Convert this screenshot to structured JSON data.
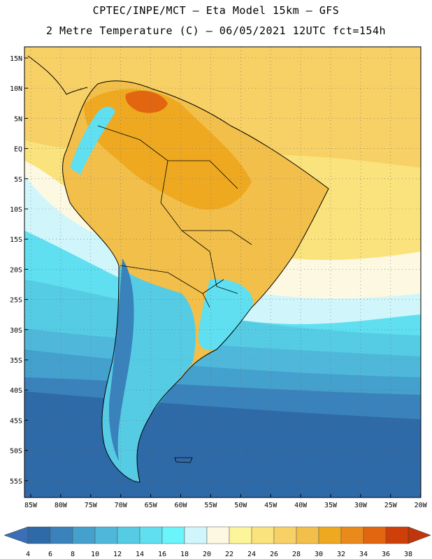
{
  "title_line1": "CPTEC/INPE/MCT –  Eta Model 15km – GFS",
  "title_line2": "2 Metre Temperature (C) – 06/05/2021 12UTC fct=154h",
  "lat_labels": [
    "15N",
    "10N",
    "5N",
    "EQ",
    "5S",
    "10S",
    "15S",
    "20S",
    "25S",
    "30S",
    "35S",
    "40S",
    "45S",
    "50S",
    "55S"
  ],
  "lon_labels": [
    "85W",
    "80W",
    "75W",
    "70W",
    "65W",
    "60W",
    "55W",
    "50W",
    "45W",
    "40W",
    "35W",
    "30W",
    "25W",
    "20W"
  ],
  "colorbar": {
    "labels": [
      "4",
      "6",
      "8",
      "10",
      "12",
      "14",
      "16",
      "18",
      "20",
      "22",
      "24",
      "26",
      "28",
      "30",
      "32",
      "34",
      "36",
      "38"
    ],
    "colors": [
      "#2e6aa8",
      "#3a82bb",
      "#44a0cc",
      "#4fb8da",
      "#55cce4",
      "#5fdff0",
      "#6af4fb",
      "#d0f6fb",
      "#fdf8e2",
      "#fdf59a",
      "#fae27c",
      "#f7d066",
      "#f2bf4a",
      "#eea920",
      "#ea8a1b",
      "#e2650f",
      "#ce3f0a"
    ],
    "low_arrow_color": "#3a6fb5",
    "high_arrow_color": "#c0350b"
  }
}
